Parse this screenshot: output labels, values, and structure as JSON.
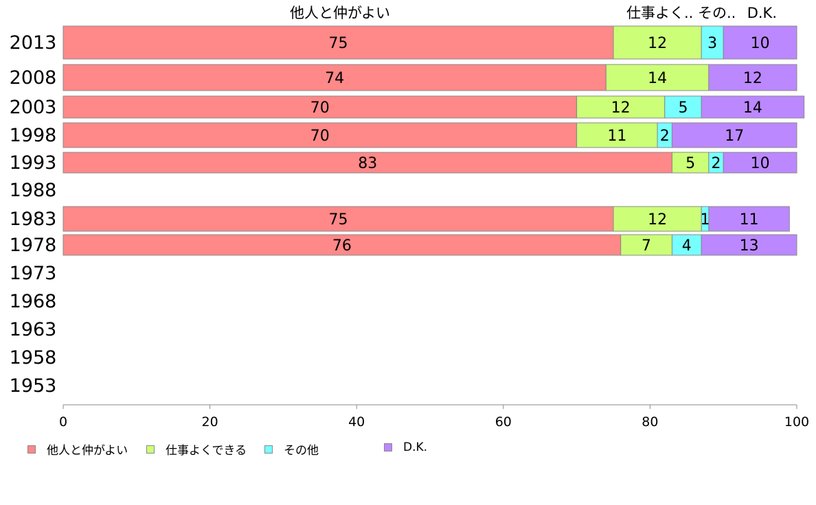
{
  "chart_data": {
    "type": "bar",
    "orientation": "horizontal",
    "stacked": true,
    "categories": [
      "2013",
      "2008",
      "2003",
      "1998",
      "1993",
      "1988",
      "1983",
      "1978",
      "1973",
      "1968",
      "1963",
      "1958",
      "1953"
    ],
    "series": [
      {
        "name": "他人と仲がよい",
        "color": "#ff8888",
        "values": [
          75,
          74,
          70,
          70,
          83,
          null,
          75,
          76,
          null,
          null,
          null,
          null,
          null
        ]
      },
      {
        "name": "仕事よくできる",
        "color": "#ccff77",
        "values": [
          12,
          14,
          12,
          11,
          5,
          null,
          12,
          7,
          null,
          null,
          null,
          null,
          null
        ]
      },
      {
        "name": "その他",
        "color": "#77ffff",
        "values": [
          3,
          0,
          5,
          2,
          2,
          null,
          1,
          4,
          null,
          null,
          null,
          null,
          null
        ]
      },
      {
        "name": "D.K.",
        "color": "#bb88ff",
        "values": [
          10,
          12,
          14,
          17,
          10,
          null,
          11,
          13,
          null,
          null,
          null,
          null,
          null
        ]
      }
    ],
    "top_labels": [
      "他人と仲がよい",
      "仕事よく..",
      "その..",
      "D.K."
    ],
    "xlim": [
      0,
      100
    ],
    "xticks": [
      0,
      20,
      40,
      60,
      80,
      100
    ],
    "grid": false,
    "legend_position": "bottom-left",
    "title": "",
    "xlabel": "",
    "ylabel": ""
  }
}
